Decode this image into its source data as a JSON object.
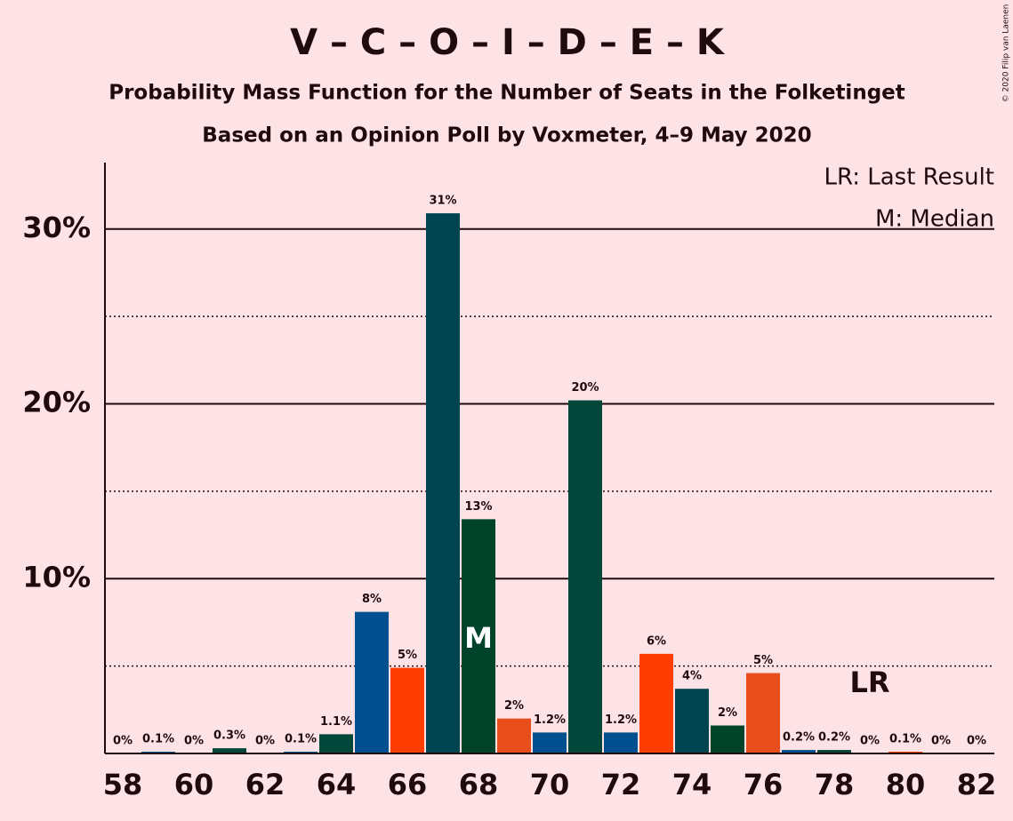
{
  "chart_data": {
    "type": "bar",
    "title": "V – C – O – I – D – E – K",
    "subtitle": "Probability Mass Function for the Number of Seats in the Folketinget",
    "subtitle2": "Based on an Opinion Poll by Voxmeter, 4–9 May 2020",
    "copyright": "© 2020 Filip van Laenen",
    "legend": [
      "LR: Last Result",
      "M: Median"
    ],
    "median": 68,
    "median_label": "M",
    "last_result": 79,
    "last_result_label": "LR",
    "x": [
      58,
      59,
      60,
      61,
      62,
      63,
      64,
      65,
      66,
      67,
      68,
      69,
      70,
      71,
      72,
      73,
      74,
      75,
      76,
      77,
      78,
      79,
      80,
      81,
      82
    ],
    "values": [
      0,
      0.1,
      0,
      0.3,
      0,
      0.1,
      1.1,
      8.1,
      4.9,
      30.9,
      13.4,
      2.0,
      1.2,
      20.2,
      1.2,
      5.7,
      3.7,
      1.6,
      4.6,
      0.2,
      0.2,
      0,
      0.1,
      0,
      0
    ],
    "value_labels": [
      "0%",
      "0.1%",
      "0%",
      "0.3%",
      "0%",
      "0.1%",
      "1.1%",
      "8%",
      "5%",
      "31%",
      "13%",
      "2%",
      "1.2%",
      "20%",
      "1.2%",
      "6%",
      "4%",
      "2%",
      "5%",
      "0.2%",
      "0.2%",
      "0%",
      "0.1%",
      "0%",
      "0%"
    ],
    "colors": [
      "#00508f",
      "#00508f",
      "#ff3d00",
      "#03463a",
      "#00508f",
      "#00508f",
      "#03463a",
      "#00508f",
      "#ff3d00",
      "#004452",
      "#00432b",
      "#e84e1b",
      "#00508f",
      "#03463a",
      "#00508f",
      "#ff3d00",
      "#004452",
      "#00432b",
      "#e84e1b",
      "#00508f",
      "#03463a",
      "#00508f",
      "#ff3d00",
      "#004452",
      "#00432b"
    ],
    "xlim": [
      57.5,
      82.5
    ],
    "xticks": [
      58,
      60,
      62,
      64,
      66,
      68,
      70,
      72,
      74,
      76,
      78,
      80,
      82
    ],
    "ylim": [
      0,
      33.8
    ],
    "yticks": [
      {
        "value": 10,
        "label": "10%"
      },
      {
        "value": 20,
        "label": "20%"
      },
      {
        "value": 30,
        "label": "30%"
      }
    ],
    "minor_yticks": [
      5,
      15,
      25
    ],
    "grid": true
  }
}
